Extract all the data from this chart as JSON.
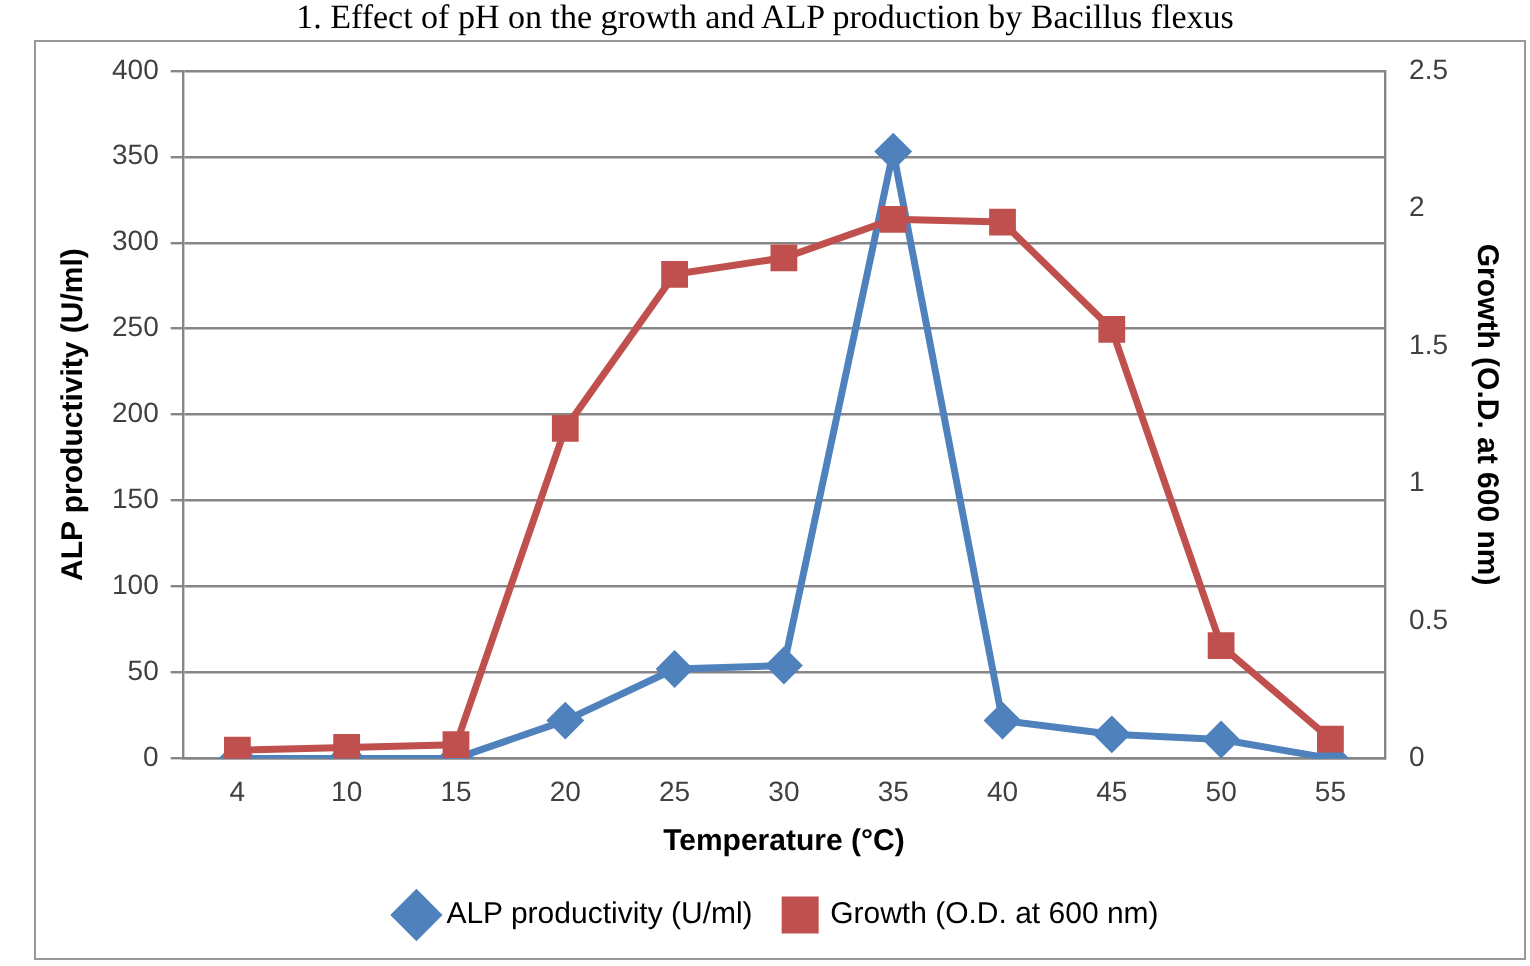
{
  "chart_data": {
    "type": "line",
    "title": "1. Effect of pH on the growth and ALP production by Bacillus flexus",
    "xlabel": "Temperature (°C)",
    "ylabel": "ALP productivity (U/ml)",
    "y2label": "Growth (O.D. at 600 nm)",
    "categories": [
      "4",
      "10",
      "15",
      "20",
      "25",
      "30",
      "35",
      "40",
      "45",
      "50",
      "55"
    ],
    "series": [
      {
        "name": "ALP productivity (U/ml)",
        "color": "#4f81bd",
        "marker": "diamond",
        "values": [
          0,
          0,
          0,
          22,
          52,
          54,
          353,
          22,
          14,
          11,
          0
        ]
      },
      {
        "name": "Growth (O.D. at 600 nm)",
        "color": "#c0504d",
        "marker": "square",
        "axis": "y2",
        "values": [
          0.03,
          0.04,
          0.05,
          1.2,
          1.76,
          1.82,
          1.96,
          1.95,
          1.56,
          0.41,
          0.07
        ]
      }
    ],
    "ylim": [
      0,
      400
    ],
    "yticks": [
      0,
      50,
      100,
      150,
      200,
      250,
      300,
      350,
      400
    ],
    "y2lim": [
      0,
      2.5
    ],
    "y2ticks": [
      0,
      0.5,
      1,
      1.5,
      2,
      2.5
    ],
    "grid": "y",
    "legend": "bottom",
    "line_style": "solid"
  }
}
